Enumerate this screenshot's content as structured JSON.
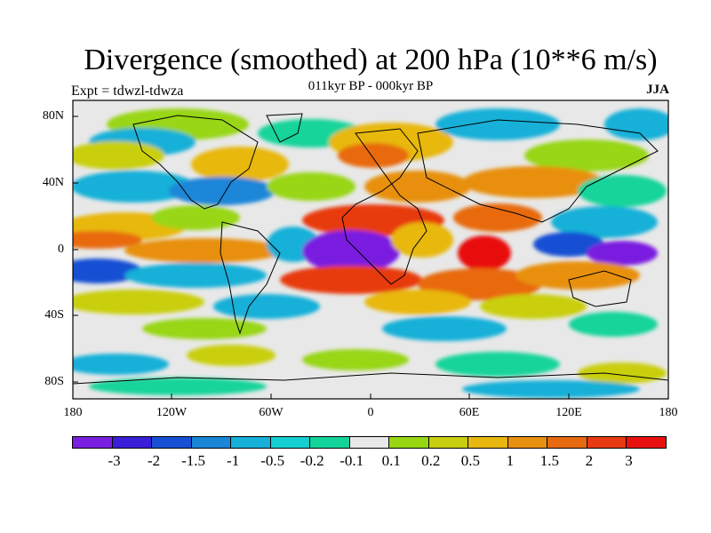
{
  "header": {
    "title": "Divergence (smoothed) at 200 hPa (10**6 m/s)",
    "experiment": "Expt = tdwzl-tdwza",
    "period": "011kyr BP - 000kyr BP",
    "season": "JJA"
  },
  "axes": {
    "y_ticks": [
      "80N",
      "40N",
      "0",
      "40S",
      "80S"
    ],
    "x_ticks": [
      "180",
      "120W",
      "60W",
      "0",
      "60E",
      "120E",
      "180"
    ]
  },
  "colorbar": {
    "labels": [
      "-3",
      "-2",
      "-1.5",
      "-1",
      "-0.5",
      "-0.2",
      "-0.1",
      "0.1",
      "0.2",
      "0.5",
      "1",
      "1.5",
      "2",
      "3"
    ],
    "colors": [
      "#7a1fe0",
      "#3a1fd8",
      "#1750d4",
      "#1a86d8",
      "#17b0d8",
      "#14cfd0",
      "#12d49a",
      "#e8e8e8",
      "#98d612",
      "#c9cf10",
      "#e8b810",
      "#e89010",
      "#e86a10",
      "#e83a10",
      "#e81010"
    ]
  },
  "map": {
    "projection": "cylindrical-equidistant",
    "lon_range": [
      -180,
      180
    ],
    "lat_range": [
      -90,
      90
    ],
    "background_color": "#e8e8e8"
  }
}
